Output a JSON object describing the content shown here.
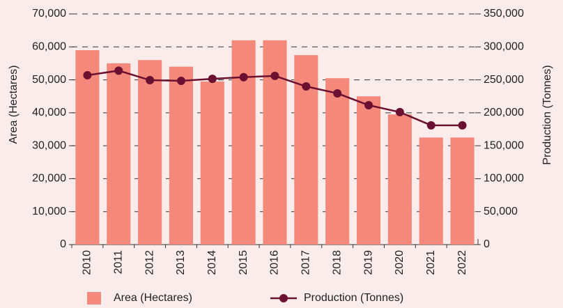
{
  "chart_data": {
    "type": "bar",
    "categories": [
      "2010",
      "2011",
      "2012",
      "2013",
      "2014",
      "2015",
      "2016",
      "2017",
      "2018",
      "2019",
      "2020",
      "2021",
      "2022"
    ],
    "ylabel": "Area (Hectares)",
    "y2label": "Production (Tonnes)",
    "ylim": [
      0,
      70000
    ],
    "yticks": [
      0,
      {
        "value": 10000,
        "label": "10,000"
      },
      {
        "value": 20000,
        "label": "20,000"
      },
      {
        "value": 30000,
        "label": "30,000"
      },
      {
        "value": 40000,
        "label": "40,000"
      },
      {
        "value": 50000,
        "label": "50,000"
      },
      {
        "value": 60000,
        "label": "60,000"
      },
      {
        "value": 70000,
        "label": "70,000"
      }
    ],
    "y2lim": [
      0,
      350000
    ],
    "y2ticks": [
      0,
      {
        "value": 50000,
        "label": "50,000"
      },
      {
        "value": 100000,
        "label": "100,000"
      },
      {
        "value": 150000,
        "label": "150,000"
      },
      {
        "value": 200000,
        "label": "200,000"
      },
      {
        "value": 250000,
        "label": "250,000"
      },
      {
        "value": 300000,
        "label": "300,000"
      },
      {
        "value": 350000,
        "label": "350,000"
      }
    ],
    "grid": true,
    "legend": "bottom",
    "series": [
      {
        "name": "Area (Hectares)",
        "type": "bar",
        "color": "#f4887a",
        "values": [
          59000,
          55000,
          56000,
          54000,
          49500,
          62000,
          62000,
          57500,
          50500,
          45000,
          39500,
          32500,
          32500
        ]
      },
      {
        "name": "Production (Tonnes)",
        "type": "line",
        "axis": "y2",
        "color": "#6b1030",
        "values": [
          257000,
          264000,
          249500,
          248500,
          251500,
          254000,
          256000,
          240000,
          229500,
          211500,
          201000,
          181000,
          181000
        ]
      }
    ]
  }
}
